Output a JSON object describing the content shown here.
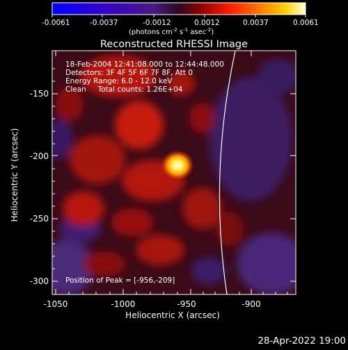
{
  "colorbar": {
    "ticks": [
      "-0.0061",
      "-0.0037",
      "-0.0012",
      "0.0012",
      "0.0037",
      "0.0061"
    ],
    "units": "(photons cm",
    "units_exp1": "-2",
    "units_mid": " s",
    "units_exp2": "-1",
    "units_mid2": " asec",
    "units_exp3": "-2",
    "units_end": ")"
  },
  "title": "Reconstructed RHESSI Image",
  "info": {
    "line1": "18-Feb-2004 12:41:08.000 to 12:44:48.000",
    "line2": "Detectors: 3F 4F 5F 6F 7F 8F, Att 0",
    "line3": "Energy Range: 6.0 - 12.0 keV",
    "line4": "Clean     Total counts: 1.26E+04",
    "peak": "Position of Peak = [-956,-209]"
  },
  "axes": {
    "xlabel": "Heliocentric X (arcsec)",
    "ylabel": "Heliocentric Y (arcsec)",
    "xticks": [
      "-1050",
      "-1000",
      "-950",
      "-900"
    ],
    "yticks": [
      "-150",
      "-200",
      "-250",
      "-300"
    ]
  },
  "footer_date": "28-Apr-2022 19:00"
}
